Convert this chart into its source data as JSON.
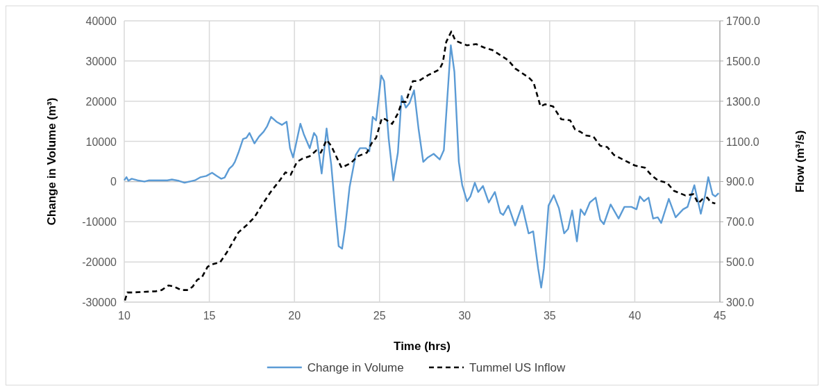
{
  "chart_data": {
    "type": "line",
    "xlabel": "Time (hrs)",
    "ylabel": "Change in Volume (m³)",
    "y2label": "Flow (m³/s)",
    "xlim": [
      10,
      45
    ],
    "xticks": [
      10,
      15,
      20,
      25,
      30,
      35,
      40,
      45
    ],
    "ylim": [
      -30000,
      40000
    ],
    "yticks": [
      -30000,
      -20000,
      -10000,
      0,
      10000,
      20000,
      30000,
      40000
    ],
    "y2lim": [
      300,
      1700
    ],
    "y2ticks": [
      {
        "value": 300,
        "label": "300.0"
      },
      {
        "value": 500,
        "label": "500.0"
      },
      {
        "value": 700,
        "label": "700.0"
      },
      {
        "value": 900,
        "label": "900.0"
      },
      {
        "value": 1100,
        "label": "1100.0"
      },
      {
        "value": 1300,
        "label": "1300.0"
      },
      {
        "value": 1500,
        "label": "1500.0"
      },
      {
        "value": 1700,
        "label": "1700.0"
      }
    ],
    "grid": true,
    "legend": "bottom",
    "series": [
      {
        "name": "Change in Volume",
        "color": "#5b9bd5",
        "line_style": "solid",
        "x": [
          10,
          10.13,
          10.24,
          10.44,
          10.78,
          11.19,
          11.46,
          12.53,
          12.8,
          13.2,
          13.54,
          14.15,
          14.49,
          14.82,
          15.16,
          15.43,
          15.7,
          15.9,
          16.17,
          16.37,
          16.5,
          16.71,
          16.98,
          17.18,
          17.36,
          17.65,
          17.92,
          18.19,
          18.4,
          18.63,
          18.94,
          19.27,
          19.54,
          19.74,
          19.92,
          20.1,
          20.35,
          20.55,
          20.9,
          21.15,
          21.3,
          21.6,
          21.89,
          22.16,
          22.4,
          22.6,
          22.8,
          22.97,
          23.24,
          23.6,
          23.85,
          24.2,
          24.4,
          24.6,
          24.8,
          25.1,
          25.27,
          25.54,
          25.81,
          26.08,
          26.3,
          26.55,
          26.76,
          27.03,
          27.3,
          27.57,
          27.84,
          28.18,
          28.54,
          28.78,
          29.19,
          29.4,
          29.66,
          29.86,
          30.14,
          30.34,
          30.6,
          30.8,
          31.08,
          31.42,
          31.78,
          32.1,
          32.27,
          32.57,
          32.97,
          33.38,
          33.76,
          34.03,
          34.32,
          34.5,
          34.66,
          34.93,
          35.24,
          35.54,
          35.85,
          36.08,
          36.32,
          36.6,
          36.82,
          37.05,
          37.36,
          37.7,
          37.97,
          38.18,
          38.58,
          39.05,
          39.39,
          39.8,
          40.1,
          40.3,
          40.54,
          40.81,
          41.08,
          41.35,
          41.55,
          42.0,
          42.4,
          42.84,
          43.1,
          43.5,
          43.68,
          43.88,
          44.12,
          44.32,
          44.57,
          44.73,
          44.93
        ],
        "values": [
          300,
          1100,
          200,
          700,
          300,
          0,
          300,
          300,
          500,
          200,
          -300,
          300,
          1100,
          1400,
          2200,
          1400,
          700,
          1000,
          3200,
          4000,
          4900,
          7200,
          10600,
          10900,
          12100,
          9500,
          11200,
          12400,
          13800,
          16100,
          14900,
          14100,
          14900,
          8300,
          6000,
          9500,
          14400,
          11800,
          8300,
          12100,
          11200,
          2000,
          13200,
          4300,
          -7200,
          -16100,
          -16700,
          -11800,
          -1400,
          6600,
          8300,
          8300,
          7500,
          16100,
          15200,
          26400,
          25000,
          10600,
          300,
          7200,
          21300,
          18400,
          19500,
          22700,
          12900,
          4900,
          6000,
          6900,
          5500,
          7800,
          33900,
          27300,
          4900,
          -900,
          -4900,
          -3700,
          -300,
          -2600,
          -1100,
          -5200,
          -2600,
          -7800,
          -8300,
          -6000,
          -10900,
          -6000,
          -12900,
          -12400,
          -21600,
          -26400,
          -21600,
          -6000,
          -3400,
          -6600,
          -12900,
          -11800,
          -7200,
          -14900,
          -6900,
          -8300,
          -5200,
          -4000,
          -9500,
          -10600,
          -5700,
          -9200,
          -6300,
          -6300,
          -6900,
          -3700,
          -4900,
          -4000,
          -9200,
          -8900,
          -10300,
          -4300,
          -8900,
          -6900,
          -6300,
          -900,
          -4300,
          -8000,
          -3700,
          1100,
          -3200,
          -3700,
          -2900
        ]
      },
      {
        "name": "Tummel US Inflow",
        "color": "#000000",
        "line_style": "dashed",
        "axis": "y2",
        "x": [
          10.04,
          10.18,
          10.51,
          11.86,
          12.2,
          12.6,
          12.94,
          13.34,
          13.75,
          14.02,
          14.29,
          14.56,
          14.89,
          15.09,
          15.63,
          16.04,
          16.71,
          17.18,
          17.65,
          18.06,
          18.6,
          19.14,
          19.47,
          19.78,
          20.15,
          20.49,
          20.89,
          21.29,
          21.55,
          21.89,
          22.16,
          22.77,
          23.31,
          23.72,
          24.26,
          24.53,
          24.8,
          25.14,
          25.34,
          25.74,
          26.08,
          26.32,
          26.55,
          26.96,
          27.3,
          27.84,
          28.51,
          28.72,
          28.92,
          29.22,
          29.46,
          30.14,
          30.68,
          31.15,
          31.62,
          32.16,
          32.57,
          32.97,
          33.78,
          34.05,
          34.46,
          34.73,
          35.2,
          35.68,
          36.2,
          36.49,
          36.82,
          37.1,
          37.57,
          37.97,
          38.38,
          38.78,
          39.32,
          40.0,
          40.6,
          40.95,
          41.35,
          41.89,
          42.3,
          42.97,
          43.45,
          43.72,
          43.99,
          44.26,
          44.46,
          44.73
        ],
        "values": [
          308,
          348,
          348,
          354,
          360,
          383,
          377,
          360,
          360,
          377,
          411,
          423,
          475,
          486,
          498,
          549,
          647,
          682,
          722,
          779,
          848,
          906,
          946,
          934,
          998,
          1015,
          1026,
          1055,
          1044,
          1107,
          1078,
          969,
          992,
          1026,
          1044,
          1090,
          1118,
          1216,
          1210,
          1187,
          1239,
          1297,
          1297,
          1400,
          1400,
          1429,
          1457,
          1492,
          1595,
          1647,
          1601,
          1578,
          1584,
          1567,
          1555,
          1526,
          1503,
          1463,
          1417,
          1394,
          1274,
          1285,
          1274,
          1210,
          1205,
          1159,
          1147,
          1130,
          1124,
          1078,
          1072,
          1032,
          1009,
          980,
          969,
          934,
          906,
          894,
          854,
          831,
          837,
          791,
          814,
          820,
          797,
          791
        ]
      }
    ]
  }
}
